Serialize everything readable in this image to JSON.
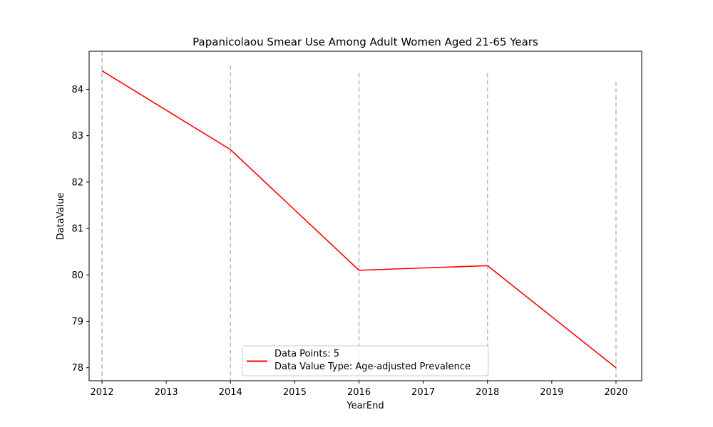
{
  "chart_data": {
    "type": "line",
    "title": "Papanicolaou Smear Use Among Adult Women Aged 21-65 Years",
    "xlabel": "YearEnd",
    "ylabel": "DataValue",
    "xlim": [
      2011.8,
      2020.4
    ],
    "ylim": [
      77.72,
      84.82
    ],
    "x_ticks": [
      2012,
      2013,
      2014,
      2015,
      2016,
      2017,
      2018,
      2019,
      2020
    ],
    "y_ticks": [
      78,
      79,
      80,
      81,
      82,
      83,
      84
    ],
    "grid": false,
    "legend_placement": "lower center",
    "series": [
      {
        "name": "Data Points: 5",
        "color": "#ff0000",
        "x": [
          2012,
          2014,
          2016,
          2018,
          2020
        ],
        "y": [
          84.4,
          82.7,
          80.1,
          80.2,
          78.0
        ]
      }
    ],
    "vertical_markers": [
      {
        "x": 2012,
        "top": 84.82
      },
      {
        "x": 2014,
        "top": 84.52
      },
      {
        "x": 2016,
        "top": 84.35
      },
      {
        "x": 2018,
        "top": 84.35
      },
      {
        "x": 2020,
        "top": 84.17
      }
    ],
    "marker_color": "#bbbbbb",
    "legend": {
      "line1": "Data Points: 5",
      "line2": "Data Value Type: Age-adjusted Prevalence"
    }
  }
}
